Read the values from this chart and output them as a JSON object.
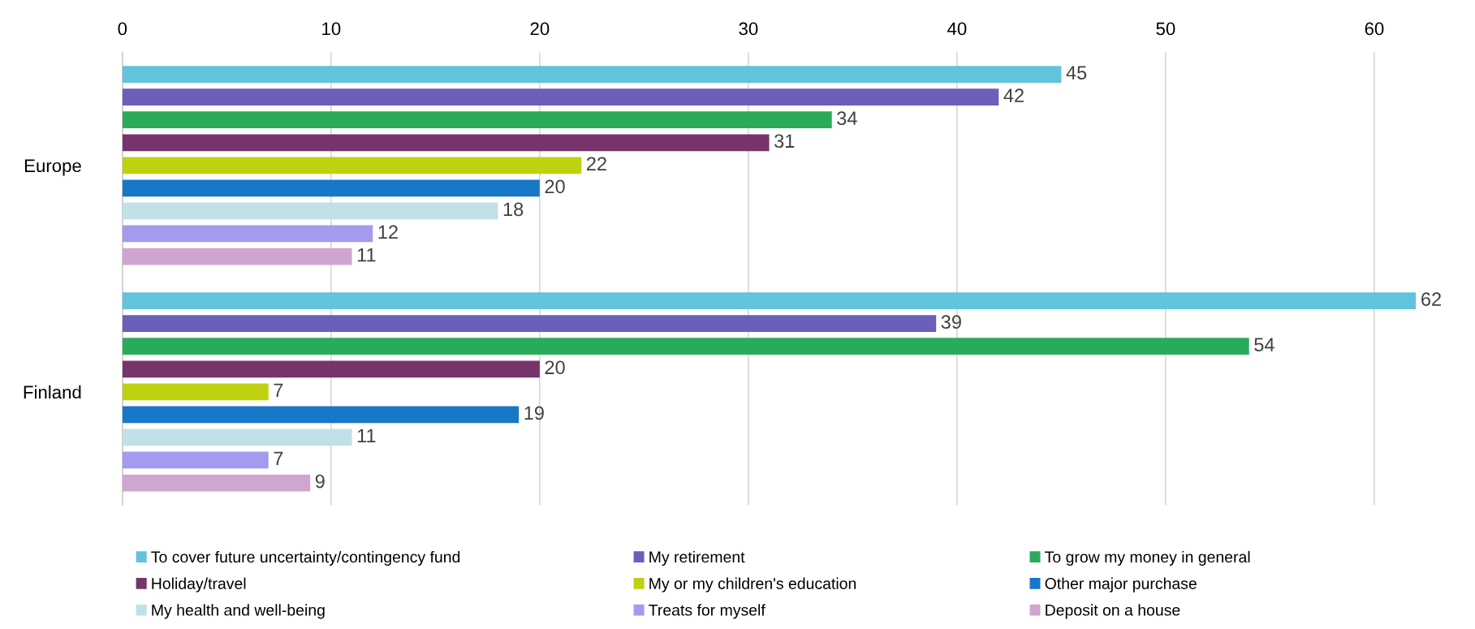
{
  "chart_data": {
    "type": "bar",
    "orientation": "horizontal",
    "categories": [
      "Europe",
      "Finland"
    ],
    "series": [
      {
        "name": "To cover future uncertainty/contingency fund",
        "color": "#62c3dd",
        "values": [
          45,
          62
        ]
      },
      {
        "name": "My retirement",
        "color": "#6a5fbb",
        "values": [
          42,
          39
        ]
      },
      {
        "name": "To grow my money in general",
        "color": "#2aab5a",
        "values": [
          34,
          54
        ]
      },
      {
        "name": "Holiday/travel",
        "color": "#77346b",
        "values": [
          31,
          20
        ]
      },
      {
        "name": "My or my children's education",
        "color": "#bfd10f",
        "values": [
          22,
          7
        ]
      },
      {
        "name": "Other major purchase",
        "color": "#1878c8",
        "values": [
          20,
          19
        ]
      },
      {
        "name": "My health and well-being",
        "color": "#c1e1e8",
        "values": [
          18,
          11
        ]
      },
      {
        "name": "Treats for myself",
        "color": "#a39bef",
        "values": [
          12,
          7
        ]
      },
      {
        "name": "Deposit on a house",
        "color": "#d0a5cf",
        "values": [
          11,
          9
        ]
      }
    ],
    "xlim": [
      0,
      62
    ],
    "xticks": [
      0,
      10,
      20,
      30,
      40,
      50,
      60
    ],
    "grid": "x",
    "legend": "bottom",
    "data_labels": true
  }
}
